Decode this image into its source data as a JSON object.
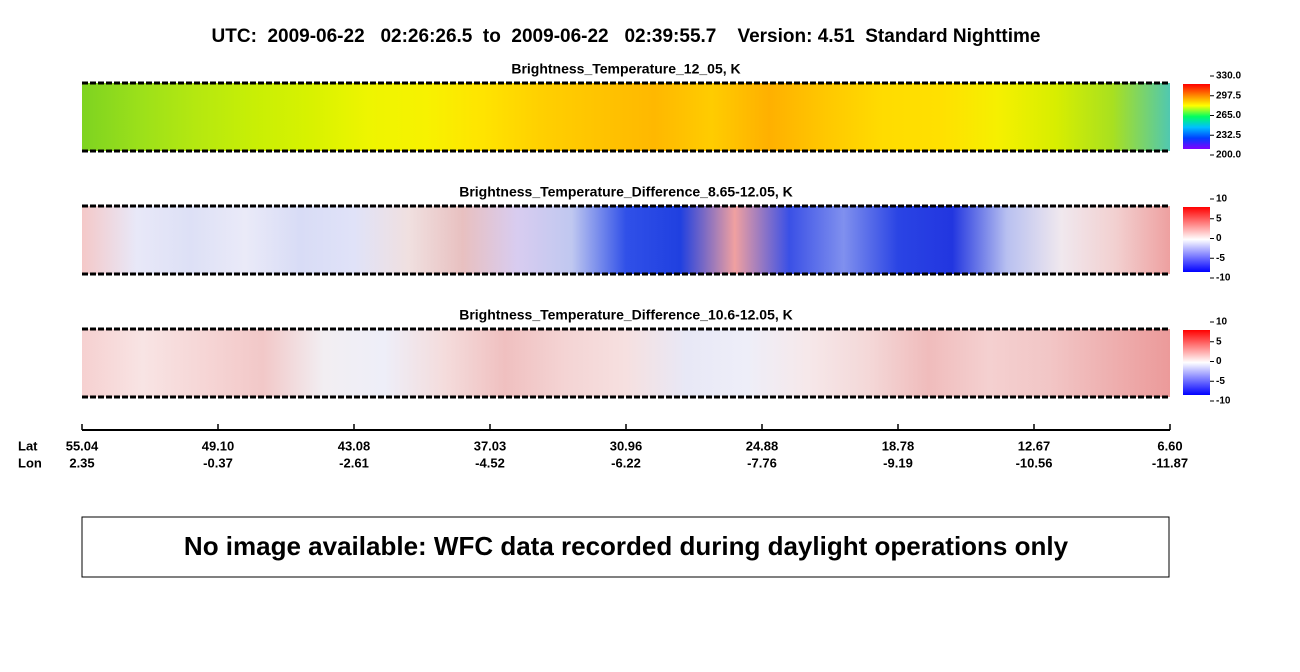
{
  "header": {
    "title": "UTC:  2009-06-22   02:26:26.5  to  2009-06-22   02:39:55.7    Version: 4.51  Standard Nighttime"
  },
  "panels": [
    {
      "title": "Brightness_Temperature_12_05, K",
      "colorbar_labels": [
        "330.0",
        "297.5",
        "265.0",
        "232.5",
        "200.0"
      ]
    },
    {
      "title": "Brightness_Temperature_Difference_8.65-12.05, K",
      "colorbar_labels": [
        "10",
        "5",
        "0",
        "-5",
        "-10"
      ]
    },
    {
      "title": "Brightness_Temperature_Difference_10.6-12.05, K",
      "colorbar_labels": [
        "10",
        "5",
        "0",
        "-5",
        "-10"
      ]
    }
  ],
  "axis": {
    "lat_label": "Lat",
    "lon_label": "Lon",
    "lat": [
      "55.04",
      "49.10",
      "43.08",
      "37.03",
      "30.96",
      "24.88",
      "18.78",
      "12.67",
      "6.60"
    ],
    "lon": [
      "2.35",
      "-0.37",
      "-2.61",
      "-4.52",
      "-6.22",
      "-7.76",
      "-9.19",
      "-10.56",
      "-11.87"
    ]
  },
  "notice": "No image available: WFC data recorded during daylight operations only"
}
